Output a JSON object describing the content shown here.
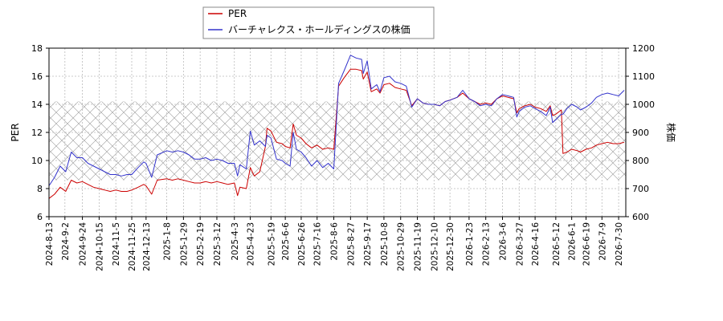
{
  "chart_data": {
    "type": "line",
    "ylabel_left": "PER",
    "ylabel_right": "株価",
    "ylim_left": [
      6,
      18
    ],
    "ylim_right": [
      600,
      1200
    ],
    "yticks_left": [
      "6",
      "8",
      "10",
      "12",
      "14",
      "16",
      "18"
    ],
    "yticks_right": [
      "600",
      "700",
      "800",
      "900",
      "1000",
      "1100",
      "1200"
    ],
    "xlim": [
      "2024-08-13",
      "2026-08-08"
    ],
    "xticks": [
      "2024-8-13",
      "2024-9-2",
      "2024-9-24",
      "2024-10-15",
      "2024-11-5",
      "2024-11-25",
      "2024-12-13",
      "2025-1-8",
      "2025-1-29",
      "2025-2-19",
      "2025-3-12",
      "2025-4-3",
      "2025-4-23",
      "2025-5-19",
      "2025-6-6",
      "2025-6-26",
      "2025-7-16",
      "2025-8-6",
      "2025-8-27",
      "2025-9-17",
      "2025-10-8",
      "2025-10-29",
      "2025-11-19",
      "2025-12-10",
      "2025-12-30",
      "2026-1-23",
      "2026-2-13",
      "2026-3-6",
      "2026-3-27",
      "2026-4-16",
      "2026-5-12",
      "2026-6-1",
      "2026-6-19",
      "2026-7-9",
      "2026-7-30"
    ],
    "grid": true,
    "legend_position": "top-center",
    "shaded_band_left": [
      8.6,
      14.2
    ],
    "series": [
      {
        "name": "PER",
        "axis": "left",
        "color": "#cc0000",
        "points": [
          [
            "2024-08-13",
            7.3
          ],
          [
            "2024-08-20",
            7.6
          ],
          [
            "2024-08-27",
            8.1
          ],
          [
            "2024-09-03",
            7.8
          ],
          [
            "2024-09-10",
            8.6
          ],
          [
            "2024-09-17",
            8.4
          ],
          [
            "2024-09-24",
            8.5
          ],
          [
            "2024-10-01",
            8.3
          ],
          [
            "2024-10-08",
            8.1
          ],
          [
            "2024-10-15",
            8.0
          ],
          [
            "2024-10-22",
            7.9
          ],
          [
            "2024-10-29",
            7.8
          ],
          [
            "2024-11-05",
            7.9
          ],
          [
            "2024-11-12",
            7.8
          ],
          [
            "2024-11-19",
            7.8
          ],
          [
            "2024-11-25",
            7.9
          ],
          [
            "2024-12-03",
            8.1
          ],
          [
            "2024-12-10",
            8.3
          ],
          [
            "2024-12-13",
            8.2
          ],
          [
            "2024-12-20",
            7.6
          ],
          [
            "2024-12-27",
            8.6
          ],
          [
            "2025-01-08",
            8.7
          ],
          [
            "2025-01-15",
            8.6
          ],
          [
            "2025-01-22",
            8.7
          ],
          [
            "2025-01-29",
            8.6
          ],
          [
            "2025-02-05",
            8.5
          ],
          [
            "2025-02-12",
            8.4
          ],
          [
            "2025-02-19",
            8.4
          ],
          [
            "2025-02-26",
            8.5
          ],
          [
            "2025-03-05",
            8.4
          ],
          [
            "2025-03-12",
            8.5
          ],
          [
            "2025-03-19",
            8.4
          ],
          [
            "2025-03-26",
            8.3
          ],
          [
            "2025-04-03",
            8.4
          ],
          [
            "2025-04-07",
            7.5
          ],
          [
            "2025-04-10",
            8.1
          ],
          [
            "2025-04-18",
            8.0
          ],
          [
            "2025-04-23",
            9.5
          ],
          [
            "2025-04-28",
            8.9
          ],
          [
            "2025-05-05",
            9.2
          ],
          [
            "2025-05-12",
            11.0
          ],
          [
            "2025-05-14",
            12.3
          ],
          [
            "2025-05-19",
            12.1
          ],
          [
            "2025-05-26",
            11.3
          ],
          [
            "2025-06-02",
            11.2
          ],
          [
            "2025-06-06",
            11.0
          ],
          [
            "2025-06-12",
            10.9
          ],
          [
            "2025-06-16",
            12.6
          ],
          [
            "2025-06-20",
            11.8
          ],
          [
            "2025-06-26",
            11.6
          ],
          [
            "2025-07-02",
            11.2
          ],
          [
            "2025-07-09",
            10.9
          ],
          [
            "2025-07-16",
            11.1
          ],
          [
            "2025-07-23",
            10.8
          ],
          [
            "2025-07-30",
            10.9
          ],
          [
            "2025-08-06",
            10.8
          ],
          [
            "2025-08-12",
            15.3
          ],
          [
            "2025-08-19",
            15.9
          ],
          [
            "2025-08-27",
            16.5
          ],
          [
            "2025-09-03",
            16.5
          ],
          [
            "2025-09-10",
            16.4
          ],
          [
            "2025-09-12",
            15.8
          ],
          [
            "2025-09-17",
            16.3
          ],
          [
            "2025-09-22",
            14.9
          ],
          [
            "2025-09-29",
            15.1
          ],
          [
            "2025-10-03",
            14.8
          ],
          [
            "2025-10-08",
            15.4
          ],
          [
            "2025-10-15",
            15.5
          ],
          [
            "2025-10-22",
            15.2
          ],
          [
            "2025-10-29",
            15.1
          ],
          [
            "2025-11-05",
            15.0
          ],
          [
            "2025-11-12",
            13.9
          ],
          [
            "2025-11-19",
            14.4
          ],
          [
            "2025-11-26",
            14.1
          ],
          [
            "2025-12-03",
            14.0
          ],
          [
            "2025-12-10",
            14.0
          ],
          [
            "2025-12-17",
            13.9
          ],
          [
            "2025-12-24",
            14.2
          ],
          [
            "2025-12-30",
            14.3
          ],
          [
            "2026-01-08",
            14.5
          ],
          [
            "2026-01-15",
            14.8
          ],
          [
            "2026-01-23",
            14.4
          ],
          [
            "2026-01-30",
            14.2
          ],
          [
            "2026-02-06",
            14.0
          ],
          [
            "2026-02-13",
            14.1
          ],
          [
            "2026-02-20",
            14.0
          ],
          [
            "2026-02-27",
            14.4
          ],
          [
            "2026-03-06",
            14.6
          ],
          [
            "2026-03-13",
            14.5
          ],
          [
            "2026-03-20",
            14.4
          ],
          [
            "2026-03-24",
            13.4
          ],
          [
            "2026-03-27",
            13.7
          ],
          [
            "2026-04-03",
            13.9
          ],
          [
            "2026-04-10",
            14.0
          ],
          [
            "2026-04-16",
            13.8
          ],
          [
            "2026-04-23",
            13.7
          ],
          [
            "2026-04-30",
            13.5
          ],
          [
            "2026-05-05",
            13.9
          ],
          [
            "2026-05-08",
            13.2
          ],
          [
            "2026-05-12",
            13.3
          ],
          [
            "2026-05-19",
            13.6
          ],
          [
            "2026-05-21",
            10.5
          ],
          [
            "2026-05-26",
            10.6
          ],
          [
            "2026-06-01",
            10.8
          ],
          [
            "2026-06-08",
            10.7
          ],
          [
            "2026-06-12",
            10.6
          ],
          [
            "2026-06-19",
            10.8
          ],
          [
            "2026-06-26",
            10.9
          ],
          [
            "2026-07-02",
            11.1
          ],
          [
            "2026-07-09",
            11.2
          ],
          [
            "2026-07-16",
            11.3
          ],
          [
            "2026-07-23",
            11.2
          ],
          [
            "2026-07-30",
            11.2
          ],
          [
            "2026-08-06",
            11.3
          ]
        ]
      },
      {
        "name": "バーチャレクス・ホールディングスの株価",
        "axis": "right",
        "color": "#3333cc",
        "points": [
          [
            "2024-08-13",
            710
          ],
          [
            "2024-08-20",
            740
          ],
          [
            "2024-08-27",
            780
          ],
          [
            "2024-09-03",
            760
          ],
          [
            "2024-09-10",
            830
          ],
          [
            "2024-09-17",
            810
          ],
          [
            "2024-09-24",
            810
          ],
          [
            "2024-10-01",
            790
          ],
          [
            "2024-10-08",
            780
          ],
          [
            "2024-10-15",
            770
          ],
          [
            "2024-10-22",
            760
          ],
          [
            "2024-10-29",
            750
          ],
          [
            "2024-11-05",
            750
          ],
          [
            "2024-11-12",
            745
          ],
          [
            "2024-11-19",
            750
          ],
          [
            "2024-11-25",
            750
          ],
          [
            "2024-12-03",
            775
          ],
          [
            "2024-12-10",
            795
          ],
          [
            "2024-12-13",
            790
          ],
          [
            "2024-12-20",
            740
          ],
          [
            "2024-12-27",
            820
          ],
          [
            "2025-01-08",
            835
          ],
          [
            "2025-01-15",
            830
          ],
          [
            "2025-01-22",
            835
          ],
          [
            "2025-01-29",
            830
          ],
          [
            "2025-02-05",
            820
          ],
          [
            "2025-02-12",
            805
          ],
          [
            "2025-02-19",
            805
          ],
          [
            "2025-02-26",
            810
          ],
          [
            "2025-03-05",
            800
          ],
          [
            "2025-03-12",
            805
          ],
          [
            "2025-03-19",
            800
          ],
          [
            "2025-03-26",
            790
          ],
          [
            "2025-04-03",
            790
          ],
          [
            "2025-04-07",
            745
          ],
          [
            "2025-04-10",
            785
          ],
          [
            "2025-04-18",
            770
          ],
          [
            "2025-04-23",
            905
          ],
          [
            "2025-04-28",
            855
          ],
          [
            "2025-05-05",
            870
          ],
          [
            "2025-05-12",
            850
          ],
          [
            "2025-05-14",
            890
          ],
          [
            "2025-05-19",
            880
          ],
          [
            "2025-05-26",
            805
          ],
          [
            "2025-06-02",
            800
          ],
          [
            "2025-06-06",
            790
          ],
          [
            "2025-06-12",
            780
          ],
          [
            "2025-06-16",
            900
          ],
          [
            "2025-06-20",
            840
          ],
          [
            "2025-06-26",
            830
          ],
          [
            "2025-07-02",
            810
          ],
          [
            "2025-07-09",
            780
          ],
          [
            "2025-07-16",
            800
          ],
          [
            "2025-07-23",
            775
          ],
          [
            "2025-07-30",
            790
          ],
          [
            "2025-08-06",
            770
          ],
          [
            "2025-08-12",
            1075
          ],
          [
            "2025-08-19",
            1120
          ],
          [
            "2025-08-27",
            1175
          ],
          [
            "2025-09-03",
            1165
          ],
          [
            "2025-09-10",
            1160
          ],
          [
            "2025-09-12",
            1110
          ],
          [
            "2025-09-17",
            1155
          ],
          [
            "2025-09-22",
            1055
          ],
          [
            "2025-09-29",
            1070
          ],
          [
            "2025-10-03",
            1045
          ],
          [
            "2025-10-08",
            1095
          ],
          [
            "2025-10-15",
            1100
          ],
          [
            "2025-10-22",
            1080
          ],
          [
            "2025-10-29",
            1075
          ],
          [
            "2025-11-05",
            1065
          ],
          [
            "2025-11-12",
            990
          ],
          [
            "2025-11-19",
            1020
          ],
          [
            "2025-11-26",
            1005
          ],
          [
            "2025-12-03",
            1000
          ],
          [
            "2025-12-10",
            1000
          ],
          [
            "2025-12-17",
            995
          ],
          [
            "2025-12-24",
            1010
          ],
          [
            "2025-12-30",
            1015
          ],
          [
            "2026-01-08",
            1025
          ],
          [
            "2026-01-15",
            1050
          ],
          [
            "2026-01-23",
            1020
          ],
          [
            "2026-01-30",
            1010
          ],
          [
            "2026-02-06",
            995
          ],
          [
            "2026-02-13",
            1000
          ],
          [
            "2026-02-20",
            995
          ],
          [
            "2026-02-27",
            1020
          ],
          [
            "2026-03-06",
            1035
          ],
          [
            "2026-03-13",
            1030
          ],
          [
            "2026-03-20",
            1025
          ],
          [
            "2026-03-24",
            955
          ],
          [
            "2026-03-27",
            975
          ],
          [
            "2026-04-03",
            990
          ],
          [
            "2026-04-10",
            995
          ],
          [
            "2026-04-16",
            985
          ],
          [
            "2026-04-23",
            975
          ],
          [
            "2026-04-30",
            960
          ],
          [
            "2026-05-05",
            990
          ],
          [
            "2026-05-08",
            935
          ],
          [
            "2026-05-12",
            945
          ],
          [
            "2026-05-19",
            965
          ],
          [
            "2026-05-21",
            965
          ],
          [
            "2026-05-26",
            985
          ],
          [
            "2026-06-01",
            1000
          ],
          [
            "2026-06-08",
            990
          ],
          [
            "2026-06-12",
            980
          ],
          [
            "2026-06-19",
            990
          ],
          [
            "2026-06-26",
            1005
          ],
          [
            "2026-07-02",
            1025
          ],
          [
            "2026-07-09",
            1035
          ],
          [
            "2026-07-16",
            1040
          ],
          [
            "2026-07-23",
            1035
          ],
          [
            "2026-07-30",
            1030
          ],
          [
            "2026-08-06",
            1050
          ]
        ]
      }
    ]
  }
}
